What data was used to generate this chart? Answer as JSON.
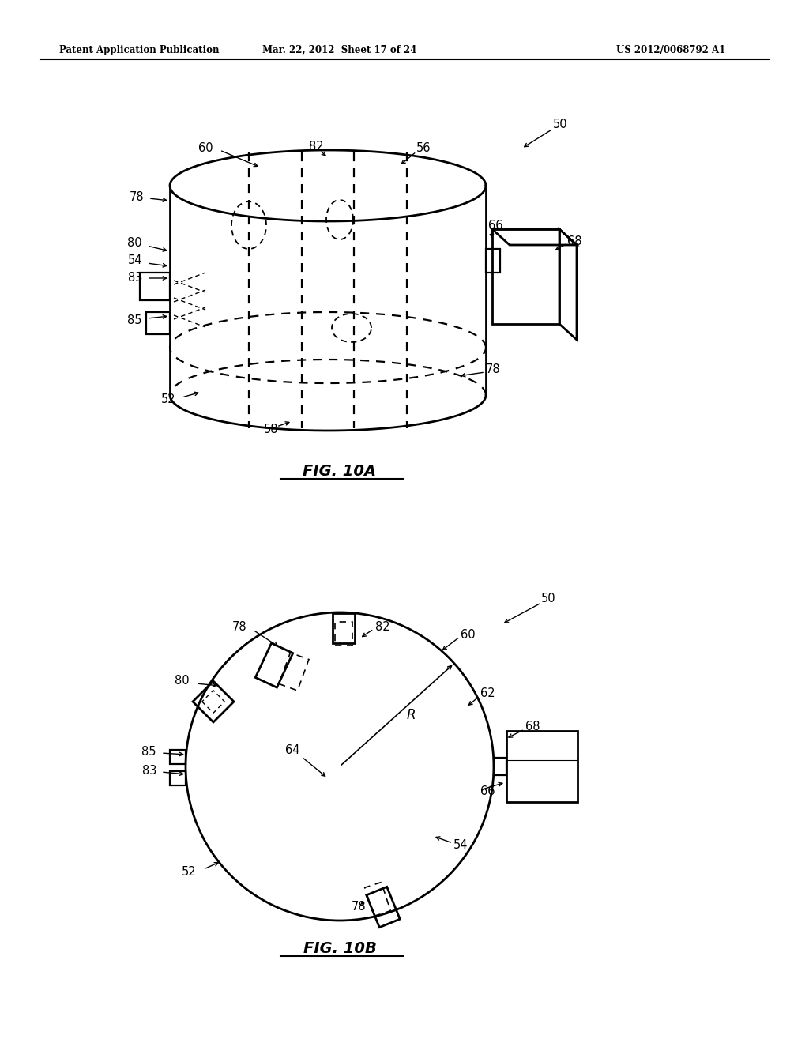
{
  "header_left": "Patent Application Publication",
  "header_center": "Mar. 22, 2012  Sheet 17 of 24",
  "header_right": "US 2012/0068792 A1",
  "fig_label_10A": "FIG. 10A",
  "fig_label_10B": "FIG. 10B",
  "bg_color": "#ffffff"
}
